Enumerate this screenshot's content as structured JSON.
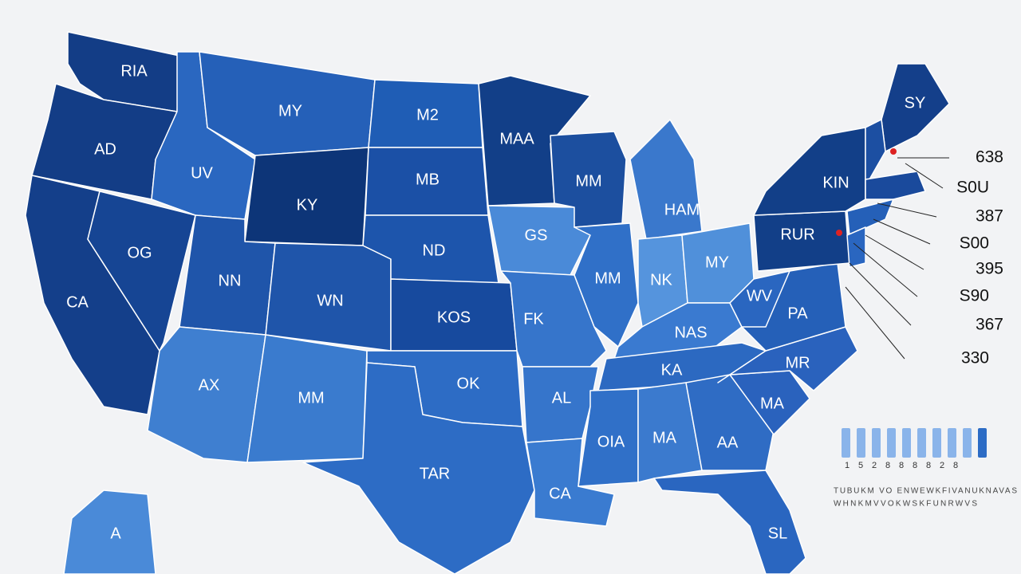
{
  "map": {
    "states": [
      {
        "label": "RIA",
        "color": "#133d86"
      },
      {
        "label": "AD",
        "color": "#133d86"
      },
      {
        "label": "CA",
        "color": "#143f8a"
      },
      {
        "label": "OG",
        "color": "#164594"
      },
      {
        "label": "UV",
        "color": "#2a67c0"
      },
      {
        "label": "MY",
        "color": "#2560b8"
      },
      {
        "label": "KY",
        "color": "#0d3578"
      },
      {
        "label": "NN",
        "color": "#1f55aa"
      },
      {
        "label": "WN",
        "color": "#1f55aa"
      },
      {
        "label": "AX",
        "color": "#3f7fd0"
      },
      {
        "label": "MM",
        "color": "#3a7bce"
      },
      {
        "label": "M2",
        "color": "#1f5db5"
      },
      {
        "label": "MB",
        "color": "#1b50a6"
      },
      {
        "label": "ND",
        "color": "#1d55ac"
      },
      {
        "label": "KOS",
        "color": "#174a9e"
      },
      {
        "label": "OK",
        "color": "#2d6cc5"
      },
      {
        "label": "TAR",
        "color": "#2d6cc5"
      },
      {
        "label": "MAA",
        "color": "#123f88"
      },
      {
        "label": "GS",
        "color": "#4a8ad8"
      },
      {
        "label": "FK",
        "color": "#3675cb"
      },
      {
        "label": "AL",
        "color": "#3675cb"
      },
      {
        "label": "CA",
        "color": "#3a7bd0"
      },
      {
        "label": "MM",
        "color": "#1c4f9f"
      },
      {
        "label": "MM",
        "color": "#3070c8"
      },
      {
        "label": "HAM",
        "color": "#3a78cc"
      },
      {
        "label": "NK",
        "color": "#5594dd"
      },
      {
        "label": "MY",
        "color": "#5090da"
      },
      {
        "label": "NAS",
        "color": "#3a7ad0"
      },
      {
        "label": "KA",
        "color": "#2c69c1"
      },
      {
        "label": "OIA",
        "color": "#3070c8"
      },
      {
        "label": "MA",
        "color": "#3b7ace"
      },
      {
        "label": "AA",
        "color": "#2f6cc4"
      },
      {
        "label": "SL",
        "color": "#2a66c0"
      },
      {
        "label": "MA",
        "color": "#2a62bd"
      },
      {
        "label": "MR",
        "color": "#2a62bd"
      },
      {
        "label": "PA",
        "color": "#2560b8"
      },
      {
        "label": "WV",
        "color": "#2a66c0"
      },
      {
        "label": "RUR",
        "color": "#123f88"
      },
      {
        "label": "KIN",
        "color": "#123f88"
      },
      {
        "label": "SY",
        "color": "#143f8a"
      },
      {
        "label": "A",
        "color": "#4a8ad8"
      }
    ],
    "callouts": [
      "638",
      "S0U",
      "387",
      "S00",
      "395",
      "S90",
      "367",
      "330"
    ],
    "legend": {
      "ticks": [
        "1",
        "5",
        "2",
        "8",
        "8",
        "8",
        "8",
        "2",
        "8"
      ],
      "lines": [
        "TUBUKM VO ENWEWKFIVANUKNAVAS",
        "WHNKMVVOKWSKFUNRWVS"
      ]
    }
  }
}
